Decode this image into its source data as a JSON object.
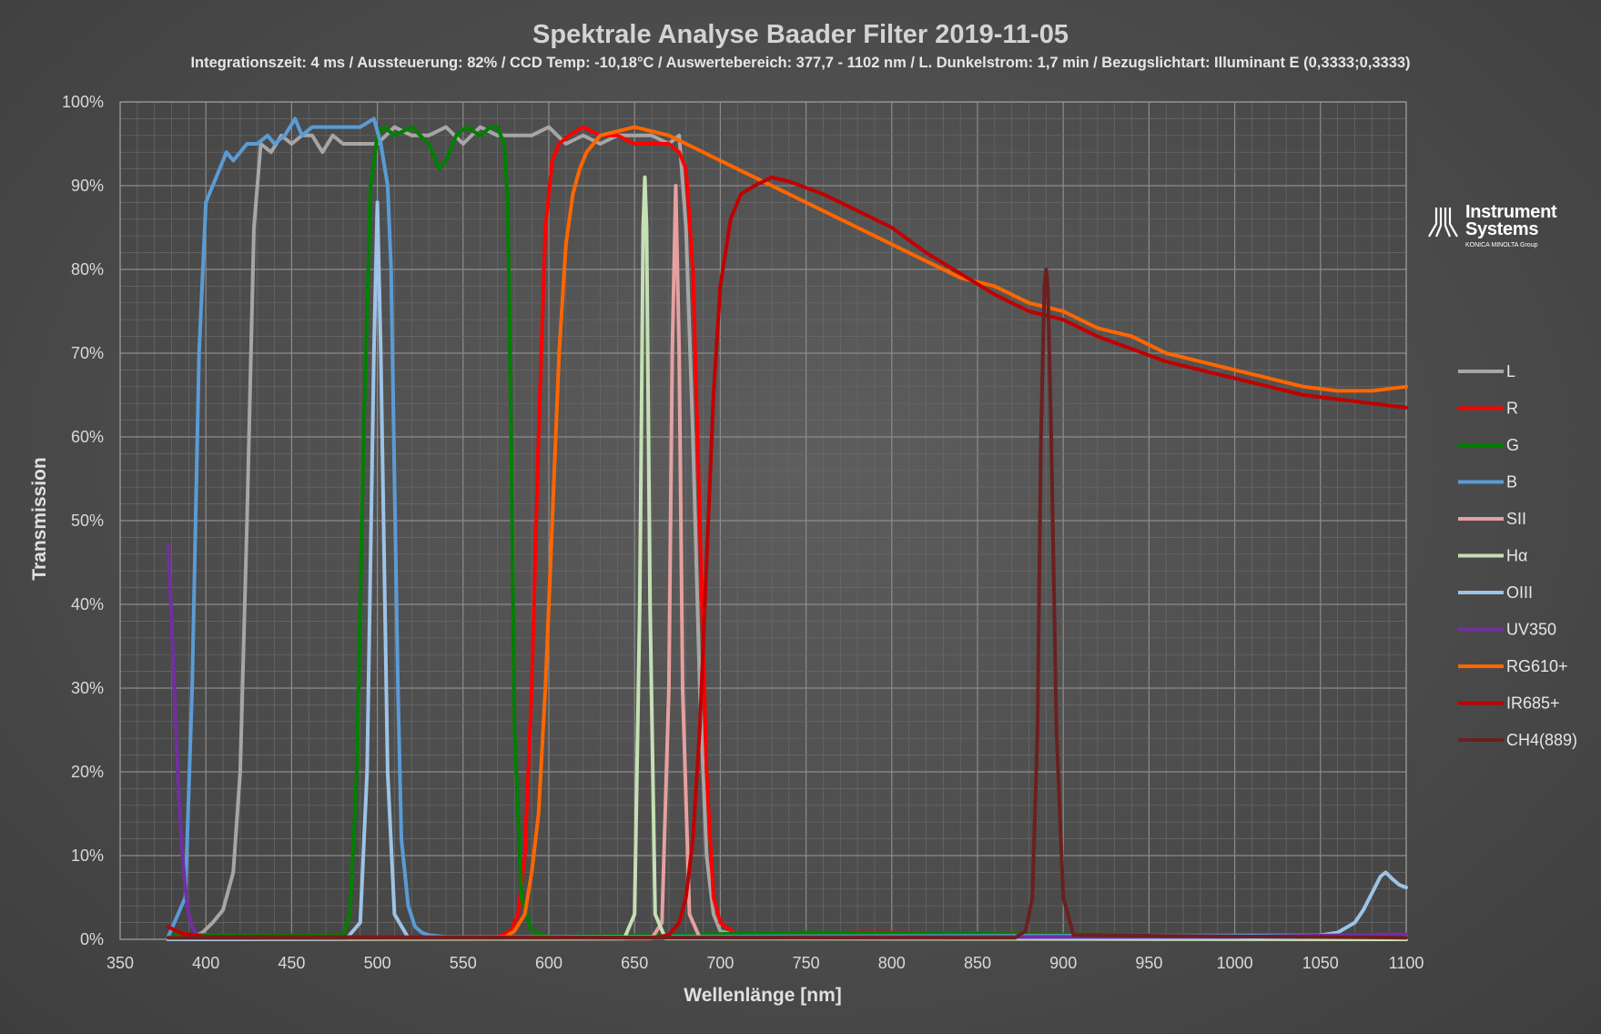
{
  "chart_data": {
    "type": "line",
    "title": "Spektrale Analyse Baader Filter 2019-11-05",
    "subtitle": "Integrationszeit: 4 ms / Aussteuerung: 82% / CCD Temp: -10,18°C / Auswertebereich: 377,7 - 1102 nm / L. Dunkelstrom: 1,7 min / Bezugslichtart: Illuminant E (0,3333;0,3333)",
    "xlabel": "Wellenlänge [nm]",
    "ylabel": "Transmission",
    "xlim": [
      350,
      1100
    ],
    "ylim": [
      0,
      100
    ],
    "x_ticks": [
      "350",
      "400",
      "450",
      "500",
      "550",
      "600",
      "650",
      "700",
      "750",
      "800",
      "850",
      "900",
      "950",
      "1000",
      "1050",
      "1100"
    ],
    "y_ticks": [
      "0%",
      "10%",
      "20%",
      "30%",
      "40%",
      "50%",
      "60%",
      "70%",
      "80%",
      "90%",
      "100%"
    ],
    "grid": "on",
    "legend_position": "right",
    "series": [
      {
        "name": "L",
        "color": "#a6a6a6",
        "x": [
          378,
          392,
          398,
          404,
          410,
          416,
          420,
          424,
          428,
          432,
          438,
          444,
          450,
          456,
          462,
          468,
          474,
          480,
          490,
          500,
          510,
          520,
          530,
          540,
          550,
          560,
          570,
          580,
          590,
          600,
          610,
          620,
          630,
          640,
          650,
          660,
          670,
          676,
          680,
          684,
          688,
          692,
          696,
          700,
          710,
          720,
          800,
          900,
          1000,
          1100
        ],
        "y": [
          0.2,
          0.3,
          0.8,
          2,
          3.5,
          8,
          20,
          50,
          85,
          95,
          94,
          96,
          95,
          96,
          96,
          94,
          96,
          95,
          95,
          95,
          97,
          96,
          96,
          97,
          95,
          97,
          96,
          96,
          96,
          97,
          95,
          96,
          95,
          96,
          96,
          96,
          95,
          96,
          85,
          60,
          30,
          10,
          3,
          1,
          0.4,
          0.2,
          0.1,
          0.1,
          0.1,
          0.1
        ]
      },
      {
        "name": "R",
        "color": "#ff0000",
        "x": [
          378,
          500,
          570,
          578,
          582,
          586,
          590,
          594,
          598,
          602,
          606,
          612,
          620,
          630,
          640,
          650,
          660,
          670,
          676,
          680,
          684,
          688,
          692,
          696,
          700,
          710,
          780,
          800,
          1100
        ],
        "y": [
          0.3,
          0.2,
          0.3,
          1,
          3,
          10,
          30,
          60,
          85,
          93,
          95,
          96,
          97,
          96,
          96,
          95,
          95,
          95,
          94,
          92,
          80,
          50,
          20,
          5,
          2,
          0.5,
          0.8,
          0.8,
          0.2
        ]
      },
      {
        "name": "G",
        "color": "#008000",
        "x": [
          378,
          480,
          484,
          488,
          492,
          496,
          500,
          504,
          510,
          520,
          530,
          536,
          540,
          546,
          552,
          560,
          566,
          570,
          574,
          576,
          578,
          580,
          584,
          590,
          600,
          750,
          1100
        ],
        "y": [
          0.5,
          0.5,
          3,
          20,
          60,
          90,
          96,
          97,
          96,
          97,
          95,
          92,
          93,
          96,
          97,
          96,
          97,
          97,
          95,
          88,
          60,
          25,
          5,
          1,
          0.3,
          0.8,
          0.3
        ]
      },
      {
        "name": "B",
        "color": "#5b9bd5",
        "x": [
          378,
          388,
          392,
          396,
          400,
          404,
          408,
          412,
          416,
          420,
          424,
          430,
          436,
          440,
          446,
          452,
          456,
          462,
          470,
          480,
          490,
          498,
          502,
          506,
          508,
          510,
          512,
          514,
          518,
          522,
          526,
          530,
          540,
          600,
          1100
        ],
        "y": [
          0.3,
          5,
          30,
          70,
          88,
          90,
          92,
          94,
          93,
          94,
          95,
          95,
          96,
          95,
          96,
          98,
          96,
          97,
          97,
          97,
          97,
          98,
          95,
          90,
          80,
          55,
          30,
          12,
          4,
          1.5,
          0.8,
          0.5,
          0.3,
          0.3,
          0.5
        ]
      },
      {
        "name": "SII",
        "color": "#e6a0a0",
        "x": [
          378,
          660,
          666,
          670,
          672,
          674,
          676,
          678,
          682,
          688,
          1100
        ],
        "y": [
          0,
          0.1,
          2,
          30,
          70,
          90,
          70,
          30,
          3,
          0.2,
          0
        ]
      },
      {
        "name": "Hα",
        "color": "#c5e0b4",
        "x": [
          378,
          644,
          650,
          653,
          655,
          656,
          657,
          659,
          662,
          668,
          1100
        ],
        "y": [
          0,
          0.1,
          3,
          40,
          85,
          91,
          85,
          40,
          3,
          0.1,
          0
        ]
      },
      {
        "name": "OIII",
        "color": "#9dc3e6",
        "x": [
          378,
          482,
          490,
          494,
          498,
          500,
          502,
          506,
          510,
          518,
          1040,
          1060,
          1070,
          1075,
          1080,
          1085,
          1088,
          1092,
          1096,
          1100
        ],
        "y": [
          0,
          0.1,
          2,
          20,
          70,
          88,
          70,
          20,
          3,
          0.2,
          0.2,
          0.8,
          2,
          3.5,
          5.5,
          7.5,
          8,
          7.2,
          6.5,
          6.2
        ]
      },
      {
        "name": "UV350",
        "color": "#7030a0",
        "x": [
          378,
          380,
          382,
          384,
          386,
          388,
          390,
          392,
          394,
          396,
          400,
          420,
          1000,
          1100
        ],
        "y": [
          47,
          38,
          28,
          18,
          11,
          6,
          3,
          1.5,
          0.8,
          0.4,
          0.2,
          0.2,
          0.3,
          0.6
        ]
      },
      {
        "name": "RG610+",
        "color": "#ff6600",
        "x": [
          378,
          574,
          580,
          586,
          590,
          594,
          598,
          602,
          606,
          610,
          614,
          618,
          622,
          626,
          630,
          640,
          650,
          660,
          670,
          680,
          700,
          720,
          740,
          760,
          780,
          800,
          820,
          840,
          860,
          880,
          900,
          920,
          940,
          960,
          980,
          1000,
          1020,
          1040,
          1060,
          1080,
          1100
        ],
        "y": [
          0.2,
          0.2,
          1,
          3,
          8,
          15,
          30,
          50,
          70,
          83,
          89,
          92,
          94,
          95,
          96,
          96.5,
          97,
          96.5,
          96,
          95,
          93,
          91,
          89,
          87,
          85,
          83,
          81,
          79,
          78,
          76,
          75,
          73,
          72,
          70,
          69,
          68,
          67,
          66,
          65.5,
          65.5,
          66
        ]
      },
      {
        "name": "IR685+",
        "color": "#c00000",
        "x": [
          378,
          386,
          400,
          660,
          670,
          676,
          680,
          684,
          688,
          692,
          696,
          700,
          706,
          712,
          720,
          730,
          740,
          760,
          780,
          800,
          820,
          840,
          860,
          880,
          900,
          920,
          940,
          960,
          980,
          1000,
          1020,
          1040,
          1060,
          1080,
          1100
        ],
        "y": [
          1.5,
          0.7,
          0.3,
          0.2,
          0.5,
          2,
          5,
          12,
          25,
          45,
          65,
          78,
          86,
          89,
          90,
          91,
          90.5,
          89,
          87,
          85,
          82,
          79.5,
          77,
          75,
          74,
          72,
          70.5,
          69,
          68,
          67,
          66,
          65,
          64.5,
          64,
          63.5
        ]
      },
      {
        "name": "CH4(889)",
        "color": "#6b2020",
        "x": [
          378,
          872,
          878,
          882,
          885,
          887,
          889,
          890,
          891,
          893,
          896,
          900,
          906,
          1100
        ],
        "y": [
          0.2,
          0.2,
          1,
          5,
          25,
          60,
          78,
          80,
          78,
          60,
          25,
          5,
          0.5,
          0.2
        ]
      }
    ]
  },
  "logo": {
    "name_line1": "Instrument",
    "name_line2": "Systems",
    "group": "KONICA MINOLTA Group"
  }
}
